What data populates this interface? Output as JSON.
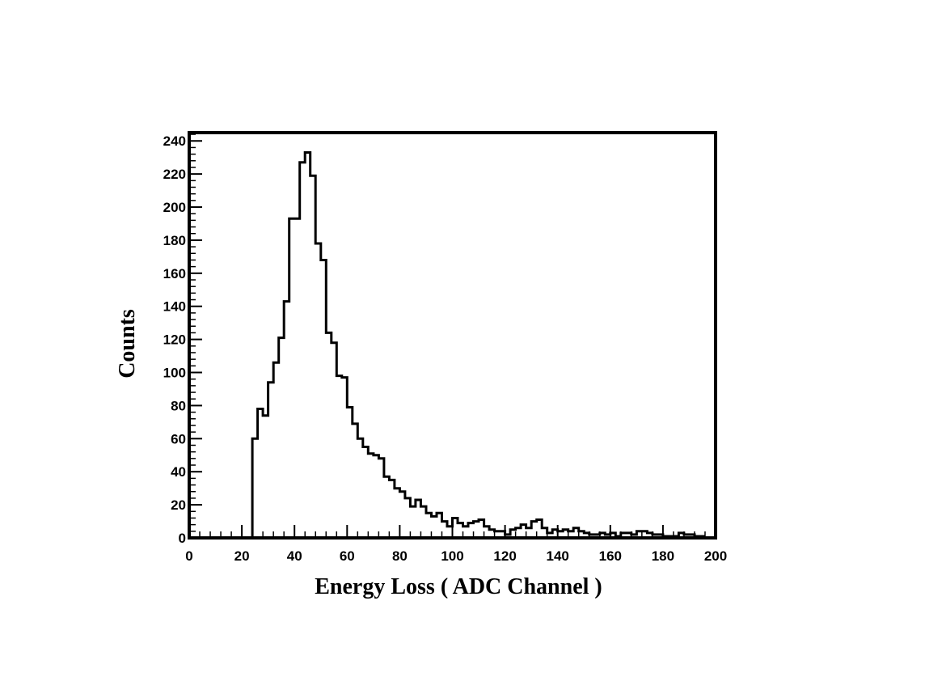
{
  "chart_data": {
    "type": "histogram",
    "xlabel": "Energy Loss ( ADC Channel )",
    "ylabel": "Counts",
    "xlim": [
      0,
      200
    ],
    "ylim": [
      0,
      245
    ],
    "x_ticks": [
      0,
      20,
      40,
      60,
      80,
      100,
      120,
      140,
      160,
      180,
      200
    ],
    "y_ticks": [
      0,
      20,
      40,
      60,
      80,
      100,
      120,
      140,
      160,
      180,
      200,
      220,
      240
    ],
    "grid": false,
    "bin_width": 2,
    "bin_start": 0,
    "values": [
      0,
      0,
      0,
      0,
      0,
      0,
      0,
      0,
      0,
      0,
      0,
      0,
      60,
      78,
      74,
      94,
      106,
      121,
      143,
      193,
      193,
      227,
      233,
      219,
      178,
      168,
      124,
      118,
      98,
      97,
      79,
      69,
      60,
      55,
      51,
      50,
      48,
      37,
      35,
      30,
      28,
      24,
      19,
      23,
      19,
      15,
      13,
      15,
      10,
      7,
      12,
      9,
      7,
      9,
      10,
      11,
      7,
      5,
      4,
      4,
      2,
      5,
      6,
      8,
      6,
      10,
      11,
      6,
      3,
      5,
      4,
      5,
      4,
      6,
      4,
      3,
      2,
      2,
      3,
      2,
      3,
      1,
      3,
      3,
      2,
      4,
      4,
      3,
      2,
      2,
      1,
      1,
      1,
      3,
      2,
      2,
      1,
      1
    ],
    "line_color": "#000000"
  }
}
